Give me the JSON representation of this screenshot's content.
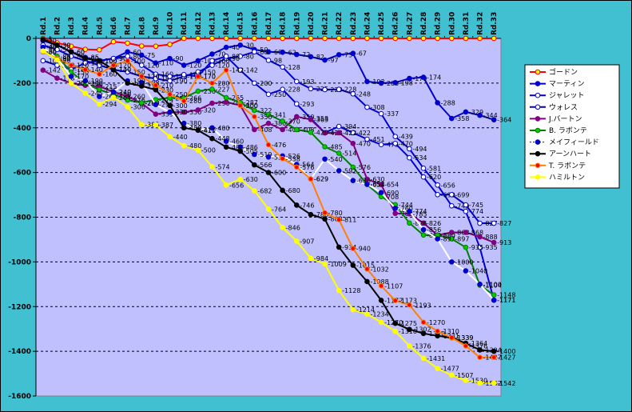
{
  "chart_data": {
    "type": "line",
    "title": "",
    "xlabel": "",
    "ylabel": "",
    "ylim": [
      -1600,
      0
    ],
    "yticks": [
      0,
      -200,
      -400,
      -600,
      -800,
      -1000,
      -1200,
      -1400,
      -1600
    ],
    "grid": "horizontal dashed",
    "legend_position": "right",
    "colors": {
      "plot_background": "#c0c0ff",
      "frame_background": "#41c0d1"
    },
    "categories": [
      "Rd.1",
      "Rd.2",
      "Rd.3",
      "Rd.4",
      "Rd.5",
      "Rd.6",
      "Rd.7",
      "Rd.8",
      "Rd.9",
      "Rd.10",
      "Rd.11",
      "Rd.12",
      "Rd.13",
      "Rd.14",
      "Rd.15",
      "Rd.16",
      "Rd.17",
      "Rd.18",
      "Rd.19",
      "Rd.20",
      "Rd.21",
      "Rd.22",
      "Rd.23",
      "Rd.24",
      "Rd.25",
      "Rd.26",
      "Rd.27",
      "Rd.28",
      "Rd.29",
      "Rd.30",
      "Rd.31",
      "Rd.32",
      "Rd.33"
    ],
    "series": [
      {
        "name": "ゴードン",
        "color": "#ff0000",
        "marker_fill": "#ffff00",
        "labels": false,
        "values": [
          0,
          -20,
          -35,
          -49,
          -51,
          -15,
          -21,
          -34,
          -35,
          -27,
          0,
          0,
          0,
          0,
          0,
          0,
          0,
          0,
          0,
          0,
          0,
          0,
          0,
          0,
          0,
          0,
          0,
          0,
          0,
          0,
          0,
          0,
          0
        ]
      },
      {
        "name": "マーティン",
        "color": "#0000cc",
        "marker_fill": "#0000cc",
        "labels": true,
        "values": [
          -10,
          -30,
          -60,
          -85,
          -100,
          -90,
          -60,
          -75,
          -110,
          -90,
          -120,
          -100,
          -70,
          -40,
          -30,
          -50,
          -60,
          -62,
          -72,
          -82,
          -97,
          -73,
          -67,
          -193,
          -200,
          -198,
          -179,
          -174,
          -288,
          -358,
          -329,
          -344,
          -364
        ]
      },
      {
        "name": "ジャレット",
        "color": "#0000cc",
        "marker_fill": "#ffffff",
        "labels": true,
        "values": [
          -30,
          -50,
          -80,
          -100,
          -120,
          -140,
          -150,
          -170,
          -180,
          -190,
          -170,
          -150,
          -120,
          -90,
          -80,
          -60,
          -98,
          -128,
          -193,
          -225,
          -229,
          -228,
          -248,
          -308,
          -337,
          -439,
          -494,
          -581,
          -656,
          -749,
          -774,
          -935,
          -1171
        ]
      },
      {
        "name": "ウォレス",
        "color": "#0000cc",
        "marker_fill": "#ffffff",
        "labels": true,
        "values": [
          -100,
          -120,
          -140,
          -110,
          -100,
          -90,
          -80,
          -120,
          -160,
          -170,
          -162,
          -170,
          -100,
          -80,
          -142,
          -200,
          -250,
          -228,
          -293,
          -358,
          -422,
          -394,
          -422,
          -451,
          -475,
          -470,
          -534,
          -620,
          -699,
          -699,
          -745,
          -827,
          -827
        ]
      },
      {
        "name": "J.バートン",
        "color": "#800080",
        "marker_fill": "#800080",
        "labels": true,
        "values": [
          -142,
          -178,
          -200,
          -210,
          -215,
          -240,
          -260,
          -290,
          -339,
          -330,
          -330,
          -320,
          -290,
          -285,
          -300,
          -408,
          -380,
          -408,
          -350,
          -363,
          -423,
          -422,
          -470,
          -630,
          -654,
          -783,
          -785,
          -826,
          -880,
          -868,
          -868,
          -888,
          -913
        ]
      },
      {
        "name": "B. ラボンテ",
        "color": "#008000",
        "marker_fill": "#00cc00",
        "labels": true,
        "values": [
          -60,
          -80,
          -150,
          -200,
          -230,
          -250,
          -276,
          -288,
          -274,
          -266,
          -266,
          -236,
          -227,
          -265,
          -287,
          -322,
          -341,
          -370,
          -408,
          -420,
          -485,
          -514,
          -576,
          -654,
          -708,
          -744,
          -826,
          -880,
          -880,
          -897,
          -935,
          -1104,
          -1148
        ]
      },
      {
        "name": "メイフィールド",
        "color": "#ffffff",
        "marker_fill": "#0000cc",
        "labels": true,
        "values": [
          -40,
          -90,
          -170,
          -190,
          -260,
          -240,
          -190,
          -198,
          -296,
          -330,
          -380,
          -410,
          -400,
          -460,
          -486,
          -519,
          -531,
          -526,
          -564,
          -629,
          -540,
          -592,
          -636,
          -652,
          -690,
          -760,
          -774,
          -856,
          -897,
          -1000,
          -1040,
          -1100,
          -1171
        ]
      },
      {
        "name": "アーンハート",
        "color": "#000000",
        "marker_fill": "#000000",
        "labels": true,
        "values": [
          -5,
          -30,
          -60,
          -90,
          -100,
          -140,
          -200,
          -213,
          -230,
          -300,
          -400,
          -411,
          -448,
          -486,
          -505,
          -566,
          -600,
          -680,
          -746,
          -788,
          -808,
          -934,
          -1015,
          -1088,
          -1172,
          -1275,
          -1302,
          -1320,
          -1331,
          -1339,
          -1364,
          -1394,
          -1400
        ]
      },
      {
        "name": "T. ラボンテ",
        "color": "#ff8000",
        "marker_fill": "#ff0000",
        "labels": true,
        "values": [
          -60,
          -90,
          -120,
          -140,
          -160,
          -120,
          -100,
          -170,
          -210,
          -250,
          -280,
          -170,
          -200,
          -142,
          -300,
          -350,
          -476,
          -538,
          -576,
          -629,
          -780,
          -811,
          -940,
          -1032,
          -1107,
          -1173,
          -1193,
          -1270,
          -1310,
          -1339,
          -1376,
          -1427,
          -1427
        ]
      },
      {
        "name": "ハミルトン",
        "color": "#ffff00",
        "marker_fill": "#ffff00",
        "labels": true,
        "values": [
          -56,
          -96,
          -200,
          -245,
          -294,
          -264,
          -306,
          -385,
          -387,
          -440,
          -480,
          -500,
          -574,
          -656,
          -630,
          -682,
          -764,
          -846,
          -907,
          -984,
          -1009,
          -1128,
          -1214,
          -1234,
          -1270,
          -1310,
          -1376,
          -1431,
          -1477,
          -1507,
          -1530,
          -1542,
          -1542
        ]
      }
    ]
  }
}
